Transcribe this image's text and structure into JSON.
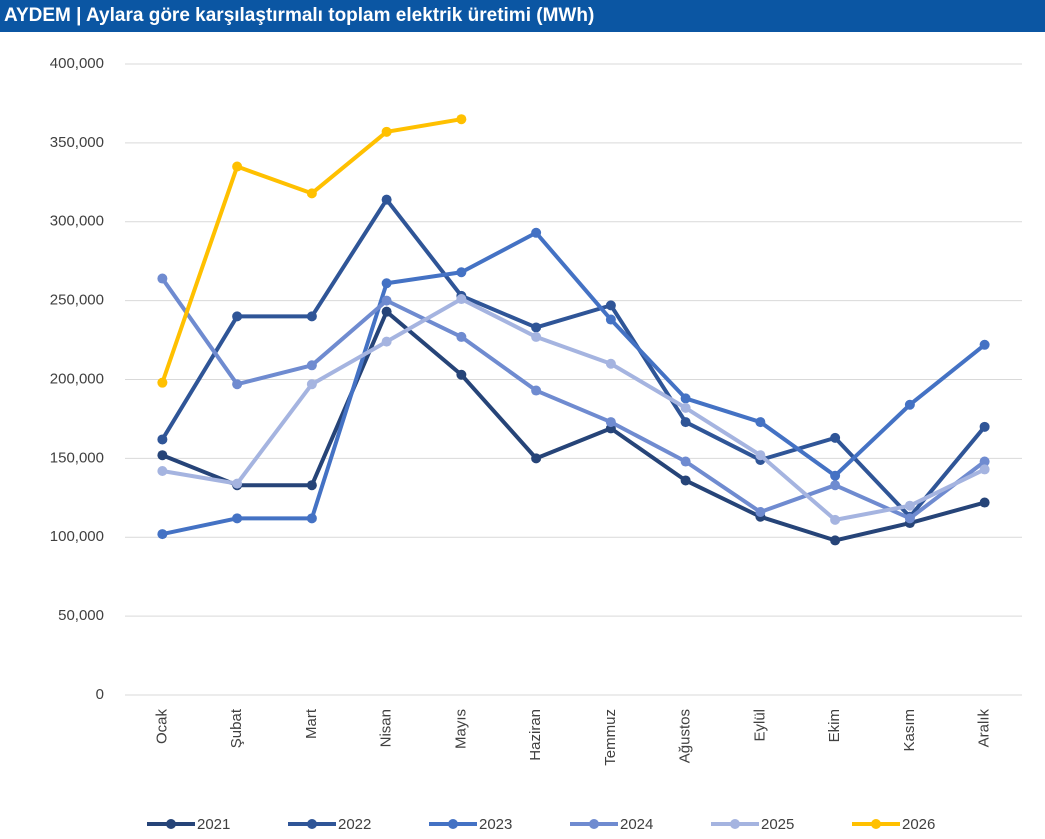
{
  "chart_data": {
    "type": "line",
    "title": "AYDEM | Aylara göre karşılaştırmalı toplam elektrik üretimi (MWh)",
    "categories": [
      "Ocak",
      "Şubat",
      "Mart",
      "Nisan",
      "Mayıs",
      "Haziran",
      "Temmuz",
      "Ağustos",
      "Eylül",
      "Ekim",
      "Kasım",
      "Aralık"
    ],
    "series": [
      {
        "name": "2021",
        "color": "#264478",
        "values": [
          152000,
          133000,
          133000,
          243000,
          203000,
          150000,
          169000,
          136000,
          113000,
          98000,
          109000,
          122000
        ]
      },
      {
        "name": "2022",
        "color": "#2f5597",
        "values": [
          162000,
          240000,
          240000,
          314000,
          253000,
          233000,
          247000,
          173000,
          149000,
          163000,
          113000,
          170000
        ]
      },
      {
        "name": "2023",
        "color": "#4472c4",
        "values": [
          102000,
          112000,
          112000,
          261000,
          268000,
          293000,
          238000,
          188000,
          173000,
          139000,
          184000,
          222000
        ]
      },
      {
        "name": "2024",
        "color": "#6f8bd0",
        "values": [
          264000,
          197000,
          209000,
          250000,
          227000,
          193000,
          173000,
          148000,
          116000,
          133000,
          112000,
          148000
        ]
      },
      {
        "name": "2025",
        "color": "#a5b4e0",
        "values": [
          142000,
          134000,
          197000,
          224000,
          251000,
          227000,
          210000,
          182000,
          152000,
          111000,
          120000,
          143000
        ]
      },
      {
        "name": "2026",
        "color": "#ffc000",
        "values": [
          198000,
          335000,
          318000,
          357000,
          365000,
          null,
          null,
          null,
          null,
          null,
          null,
          null
        ]
      }
    ],
    "ylim": [
      0,
      400000
    ],
    "yticks": [
      0,
      {
        "value": 50000,
        "label": "50,000"
      },
      {
        "value": 100000,
        "label": "100,000"
      },
      {
        "value": 150000,
        "label": "150,000"
      },
      {
        "value": 200000,
        "label": "200,000"
      },
      {
        "value": 250000,
        "label": "250,000"
      },
      {
        "value": 300000,
        "label": "300,000"
      },
      {
        "value": 350000,
        "label": "350,000"
      },
      {
        "value": 400000,
        "label": "400,000"
      }
    ],
    "grid": true,
    "legend": "bottom"
  }
}
